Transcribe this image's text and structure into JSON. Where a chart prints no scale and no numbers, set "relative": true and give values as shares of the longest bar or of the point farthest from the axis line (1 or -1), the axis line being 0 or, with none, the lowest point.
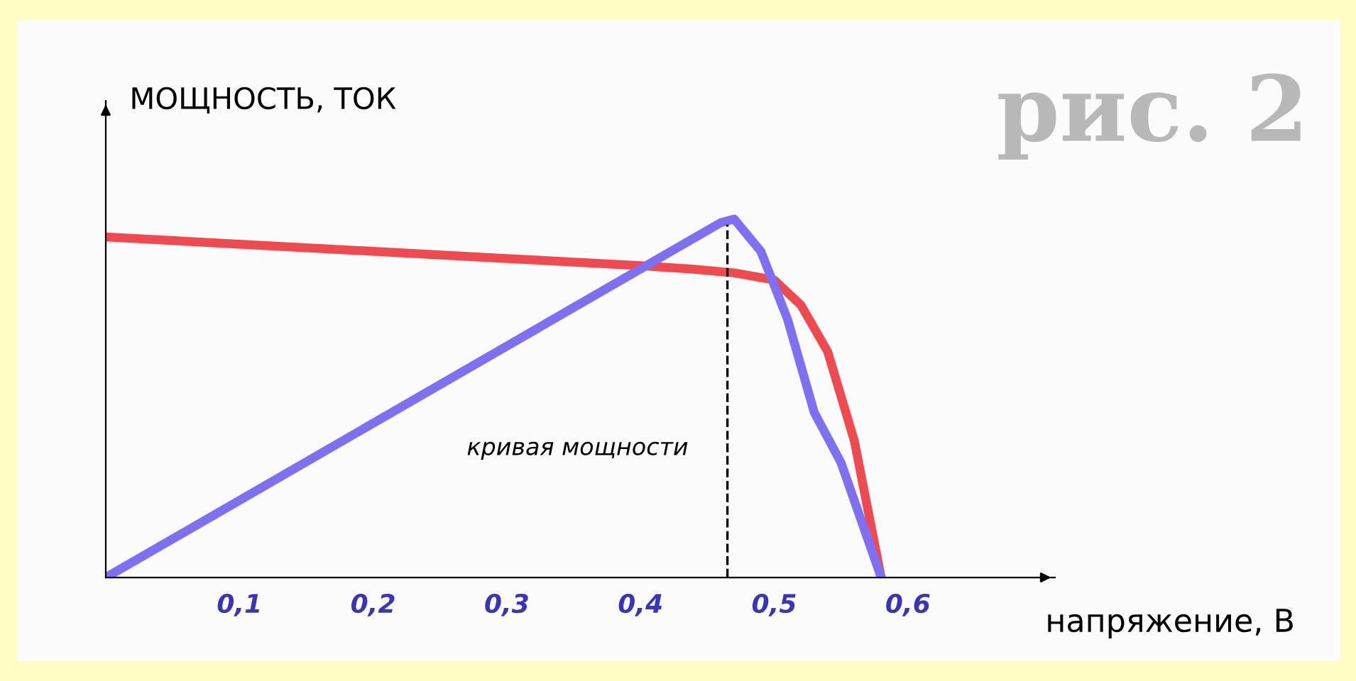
{
  "chart_data": {
    "type": "line",
    "relative": true,
    "title": "рис. 2",
    "ylabel": "МОЩНОСТЬ, ТОК",
    "xlabel": "напряжение, В",
    "annotations": [
      "кривая мощности"
    ],
    "xlim": [
      0,
      0.71
    ],
    "xticks": [
      {
        "value": 0.1,
        "label": "0,1"
      },
      {
        "value": 0.2,
        "label": "0,2"
      },
      {
        "value": 0.3,
        "label": "0,3"
      },
      {
        "value": 0.4,
        "label": "0,4"
      },
      {
        "value": 0.5,
        "label": "0,5"
      },
      {
        "value": 0.6,
        "label": "0,6"
      }
    ],
    "series": [
      {
        "color": "#ee4a4f",
        "x": [
          0,
          0.1,
          0.2,
          0.3,
          0.4,
          0.44,
          0.47,
          0.5,
          0.52,
          0.54,
          0.56,
          0.58
        ],
        "values": [
          0.95,
          0.93,
          0.91,
          0.89,
          0.87,
          0.86,
          0.85,
          0.83,
          0.76,
          0.63,
          0.38,
          0
        ]
      },
      {
        "color": "#7f6ff2",
        "x": [
          0,
          0.46,
          0.47,
          0.49,
          0.51,
          0.53,
          0.55,
          0.58
        ],
        "values": [
          0,
          0.99,
          1,
          0.91,
          0.72,
          0.46,
          0.32,
          0
        ]
      }
    ],
    "ref_lines": [
      {
        "axis": "x",
        "value": 0.465,
        "color": "#000000",
        "line_style": "dashed"
      }
    ],
    "grid": false,
    "legend": false,
    "line_style": "solid",
    "marker": "none"
  }
}
